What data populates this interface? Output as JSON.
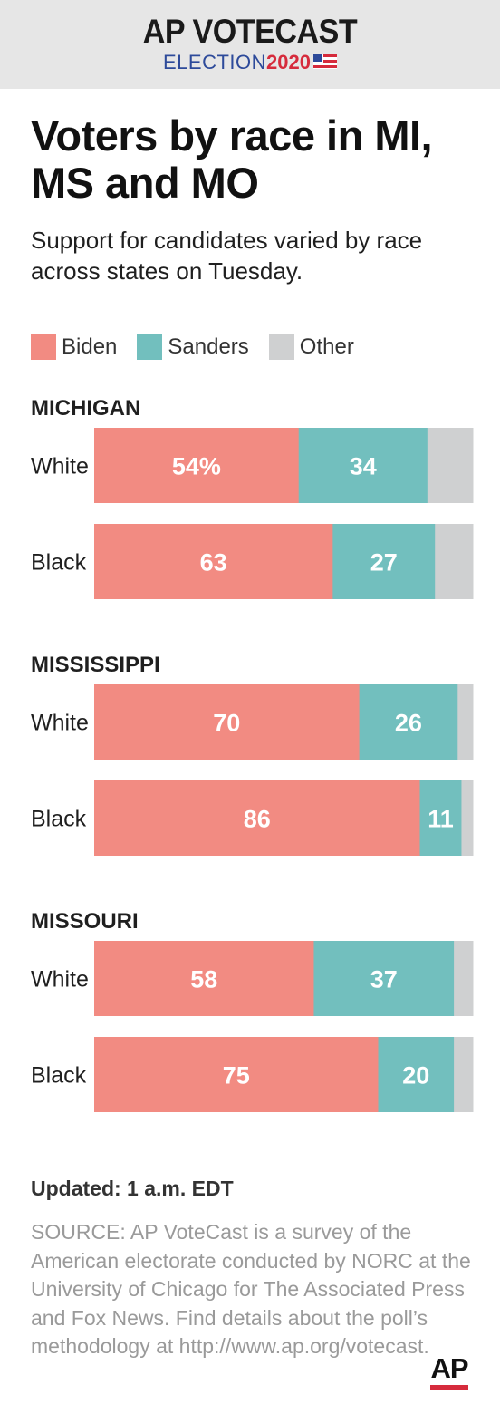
{
  "header": {
    "brand_title": "AP VOTECAST",
    "brand_election": "ELECTION",
    "brand_year": "2020"
  },
  "title": "Voters by race in MI, MS and MO",
  "subtitle": "Support for candidates varied by race across states on Tuesday.",
  "legend": [
    {
      "label": "Biden",
      "color": "#f28b82"
    },
    {
      "label": "Sanders",
      "color": "#72bfbe"
    },
    {
      "label": "Other",
      "color": "#cfd0d1"
    }
  ],
  "chart_data": {
    "type": "bar",
    "orientation": "horizontal",
    "stacked": true,
    "unit": "%",
    "groups": [
      {
        "state": "MICHIGAN",
        "rows": [
          {
            "category": "White",
            "values": [
              54,
              34,
              12
            ],
            "labels": [
              "54%",
              "34",
              ""
            ]
          },
          {
            "category": "Black",
            "values": [
              63,
              27,
              10
            ],
            "labels": [
              "63",
              "27",
              ""
            ]
          }
        ]
      },
      {
        "state": "MISSISSIPPI",
        "rows": [
          {
            "category": "White",
            "values": [
              70,
              26,
              4
            ],
            "labels": [
              "70",
              "26",
              ""
            ]
          },
          {
            "category": "Black",
            "values": [
              86,
              11,
              3
            ],
            "labels": [
              "86",
              "11",
              ""
            ]
          }
        ]
      },
      {
        "state": "MISSOURI",
        "rows": [
          {
            "category": "White",
            "values": [
              58,
              37,
              5
            ],
            "labels": [
              "58",
              "37",
              ""
            ]
          },
          {
            "category": "Black",
            "values": [
              75,
              20,
              5
            ],
            "labels": [
              "75",
              "20",
              ""
            ]
          }
        ]
      }
    ],
    "series": [
      "Biden",
      "Sanders",
      "Other"
    ],
    "colors": [
      "#f28b82",
      "#72bfbe",
      "#cfd0d1"
    ],
    "xlim": [
      0,
      100
    ],
    "grid": false,
    "legend_position": "top-left"
  },
  "footer": {
    "updated": "Updated: 1 a.m. EDT",
    "source": "SOURCE: AP VoteCast is a survey of the American electorate conducted by NORC at the University of Chicago for The Associated Press and Fox News. Find details about the poll’s methodology at http://www.ap.org/votecast.",
    "logo": "AP"
  }
}
